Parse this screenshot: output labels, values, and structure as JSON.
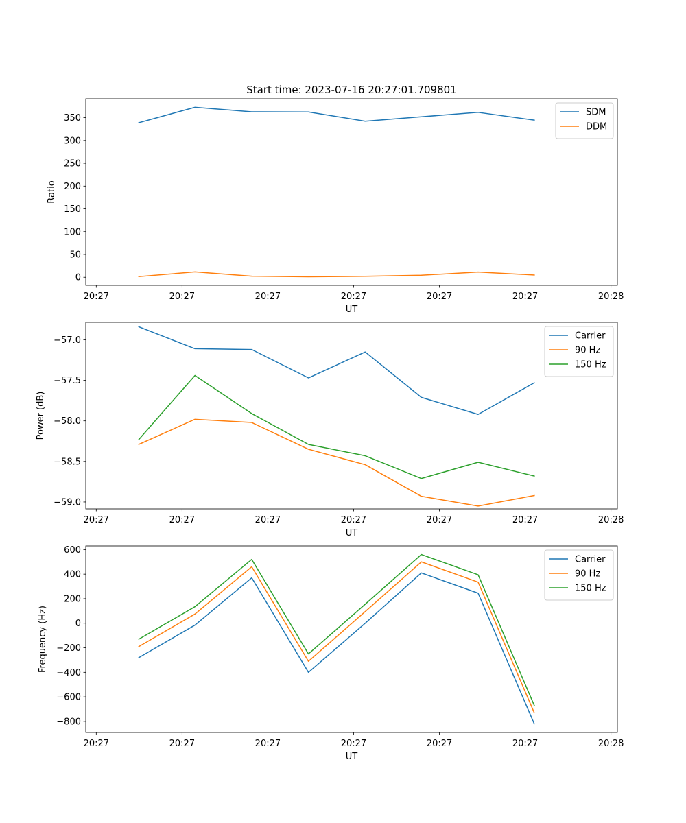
{
  "colors": {
    "blue": "#1f77b4",
    "orange": "#ff7f0e",
    "green": "#2ca02c"
  },
  "chart_data": [
    {
      "type": "line",
      "title": "Start time: 2023-07-16 20:27:01.709801",
      "xlabel": "UT",
      "ylabel": "Ratio",
      "x_tick_labels": [
        "20:27",
        "20:27",
        "20:27",
        "20:27",
        "20:27",
        "20:27",
        "20:28"
      ],
      "xlim": [
        -0.185,
        9.185
      ],
      "x_ticks": [
        0,
        1.512,
        3.024,
        4.536,
        6.048,
        7.56,
        9.072
      ],
      "ylim": [
        -17.7,
        391.5
      ],
      "y_ticks": [
        0,
        50,
        100,
        150,
        200,
        250,
        300,
        350
      ],
      "legend_position": "top-right",
      "x": [
        0.75,
        1.74,
        2.74,
        3.74,
        4.74,
        5.73,
        6.73,
        7.72
      ],
      "series": [
        {
          "name": "SDM",
          "color": "#1f77b4",
          "values": [
            338.9,
            372.9,
            362.9,
            362.5,
            342.3,
            352.0,
            361.7,
            344.6
          ]
        },
        {
          "name": "DDM",
          "color": "#ff7f0e",
          "values": [
            1.5,
            11.8,
            2.5,
            1.2,
            2.2,
            4.5,
            11.4,
            5.0
          ]
        }
      ]
    },
    {
      "type": "line",
      "title": "",
      "xlabel": "UT",
      "ylabel": "Power (dB)",
      "x_tick_labels": [
        "20:27",
        "20:27",
        "20:27",
        "20:27",
        "20:27",
        "20:27",
        "20:28"
      ],
      "xlim": [
        -0.185,
        9.185
      ],
      "x_ticks": [
        0,
        1.512,
        3.024,
        4.536,
        6.048,
        7.56,
        9.072
      ],
      "ylim": [
        -59.085,
        -56.785
      ],
      "y_ticks": [
        -59.0,
        -58.5,
        -58.0,
        -57.5,
        -57.0
      ],
      "y_tick_labels": [
        "−59.0",
        "−58.5",
        "−58.0",
        "−57.5",
        "−57.0"
      ],
      "legend_position": "top-right",
      "x": [
        0.75,
        1.74,
        2.74,
        3.74,
        4.74,
        5.73,
        6.73,
        7.72
      ],
      "series": [
        {
          "name": "Carrier",
          "color": "#1f77b4",
          "values": [
            -56.84,
            -57.11,
            -57.12,
            -57.47,
            -57.15,
            -57.71,
            -57.92,
            -57.53
          ]
        },
        {
          "name": "90 Hz",
          "color": "#ff7f0e",
          "values": [
            -58.29,
            -57.98,
            -58.02,
            -58.35,
            -58.54,
            -58.93,
            -59.05,
            -58.92
          ]
        },
        {
          "name": "150 Hz",
          "color": "#2ca02c",
          "values": [
            -58.23,
            -57.44,
            -57.91,
            -58.29,
            -58.43,
            -58.71,
            -58.51,
            -58.68
          ]
        }
      ]
    },
    {
      "type": "line",
      "title": "",
      "xlabel": "UT",
      "ylabel": "Frequency (Hz)",
      "x_tick_labels": [
        "20:27",
        "20:27",
        "20:27",
        "20:27",
        "20:27",
        "20:27",
        "20:28"
      ],
      "xlim": [
        -0.185,
        9.185
      ],
      "x_ticks": [
        0,
        1.512,
        3.024,
        4.536,
        6.048,
        7.56,
        9.072
      ],
      "ylim": [
        -890,
        630
      ],
      "y_ticks": [
        -800,
        -600,
        -400,
        -200,
        0,
        200,
        400,
        600
      ],
      "y_tick_labels": [
        "−800",
        "−600",
        "−400",
        "−200",
        "0",
        "200",
        "400",
        "600"
      ],
      "legend_position": "top-right",
      "x": [
        0.75,
        1.74,
        2.74,
        3.74,
        4.74,
        5.73,
        6.73,
        7.72
      ],
      "series": [
        {
          "name": "Carrier",
          "color": "#1f77b4",
          "values": [
            -280,
            -15,
            370,
            -400,
            0,
            410,
            245,
            -820
          ]
        },
        {
          "name": "90 Hz",
          "color": "#ff7f0e",
          "values": [
            -190,
            75,
            460,
            -310,
            95,
            500,
            335,
            -730
          ]
        },
        {
          "name": "150 Hz",
          "color": "#2ca02c",
          "values": [
            -130,
            135,
            520,
            -250,
            155,
            560,
            395,
            -670
          ]
        }
      ]
    }
  ]
}
